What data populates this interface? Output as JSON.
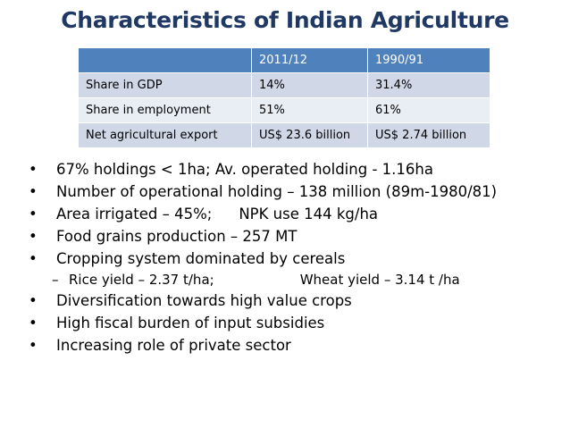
{
  "title": "Characteristics of Indian Agriculture",
  "table": {
    "headers": [
      "",
      "2011/12",
      "1990/91"
    ],
    "rows": [
      [
        "Share in GDP",
        "14%",
        "31.4%"
      ],
      [
        "Share in employment",
        "51%",
        "61%"
      ],
      [
        "Net agricultural export",
        "US$ 23.6 billion",
        " US$ 2.74 billion"
      ]
    ]
  },
  "bullet_char": "•",
  "dash_char": "–",
  "bullets": [
    {
      "text": "67% holdings < 1ha; Av. operated holding - 1.16ha"
    },
    {
      "text": "Number of operational holding – 138 million (89m-1980/81)"
    },
    {
      "part1": "Area irrigated – 45%;",
      "part2": "NPK use 144 kg/ha"
    },
    {
      "text": "Food grains production – 257 MT"
    },
    {
      "text": "Cropping system dominated by cereals"
    },
    {
      "sub_part1": "Rice yield – 2.37 t/ha;",
      "sub_part2": "Wheat yield – 3.14 t /ha"
    },
    {
      "text": "Diversification towards high value crops"
    },
    {
      "text": "High fiscal burden of input subsidies"
    },
    {
      "text": "Increasing role of private sector"
    }
  ]
}
